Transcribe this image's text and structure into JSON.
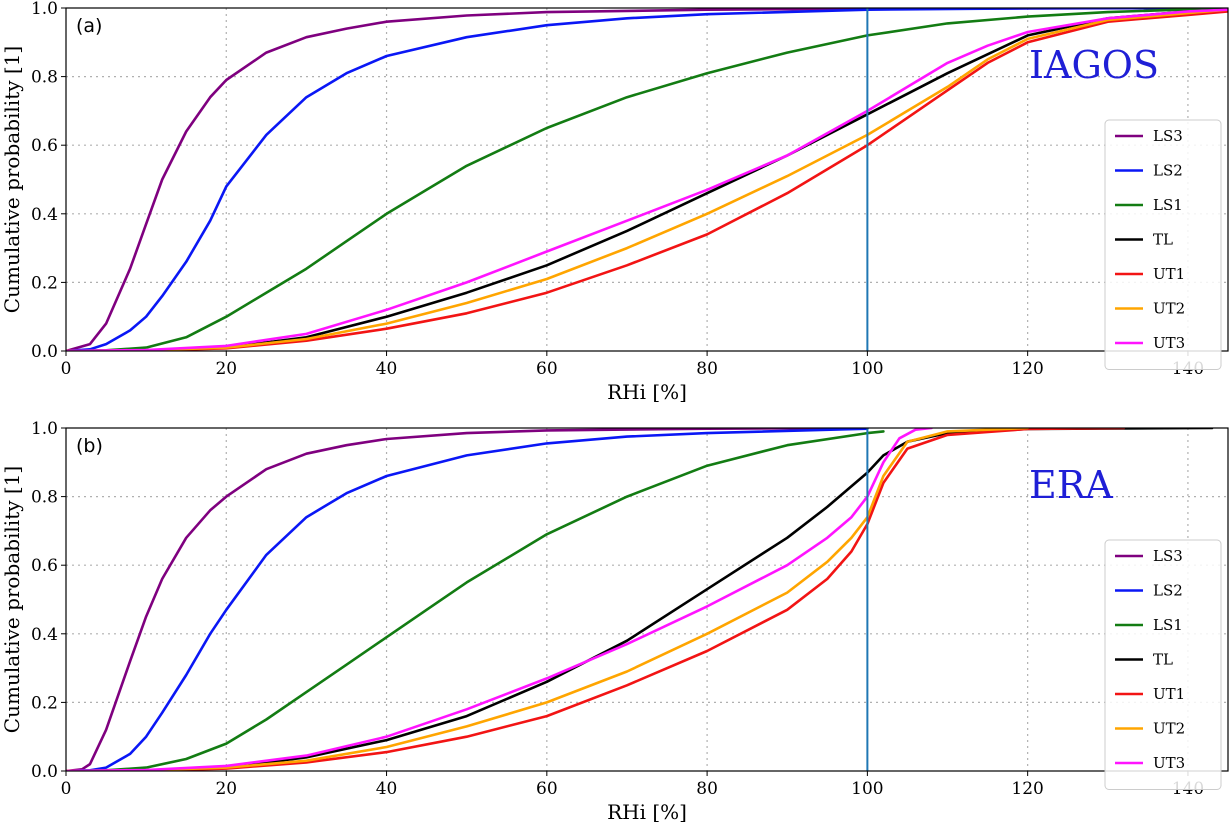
{
  "chart_data": [
    {
      "type": "line",
      "panel_label": "(a)",
      "dataset_label": "IAGOS",
      "title": "",
      "xlabel": "RHi [%]",
      "ylabel": "Cumulative probability [1]",
      "xlim": [
        0,
        145
      ],
      "ylim": [
        0,
        1.0
      ],
      "xticks": [
        "0",
        "20",
        "40",
        "60",
        "80",
        "100",
        "120",
        "140"
      ],
      "yticks": [
        "0.0",
        "0.2",
        "0.4",
        "0.6",
        "0.8",
        "1.0"
      ],
      "grid": true,
      "legend_position": "right",
      "vline_x": 100,
      "vline_color": "#1f77b4",
      "series": [
        {
          "name": "LS3",
          "color": "#7f007f",
          "x": [
            0,
            3,
            5,
            8,
            10,
            12,
            15,
            18,
            20,
            25,
            30,
            35,
            40,
            50,
            60,
            80,
            100,
            145
          ],
          "y": [
            0,
            0.02,
            0.08,
            0.24,
            0.37,
            0.5,
            0.64,
            0.74,
            0.79,
            0.87,
            0.915,
            0.94,
            0.96,
            0.978,
            0.988,
            0.995,
            0.998,
            1.0
          ]
        },
        {
          "name": "LS2",
          "color": "#0a17f5",
          "x": [
            0,
            3,
            5,
            8,
            10,
            12,
            15,
            18,
            20,
            25,
            30,
            35,
            40,
            50,
            60,
            70,
            80,
            100,
            120,
            145
          ],
          "y": [
            0,
            0.005,
            0.02,
            0.06,
            0.1,
            0.16,
            0.26,
            0.38,
            0.48,
            0.63,
            0.74,
            0.81,
            0.86,
            0.915,
            0.95,
            0.97,
            0.982,
            0.995,
            0.999,
            1.0
          ]
        },
        {
          "name": "LS1",
          "color": "#137c13",
          "x": [
            0,
            5,
            10,
            15,
            20,
            25,
            30,
            35,
            40,
            45,
            50,
            60,
            70,
            80,
            90,
            100,
            110,
            120,
            130,
            145
          ],
          "y": [
            0,
            0.002,
            0.01,
            0.04,
            0.1,
            0.17,
            0.24,
            0.32,
            0.4,
            0.47,
            0.54,
            0.65,
            0.74,
            0.81,
            0.87,
            0.92,
            0.955,
            0.975,
            0.988,
            1.0
          ]
        },
        {
          "name": "TL",
          "color": "#000000",
          "x": [
            0,
            10,
            20,
            30,
            40,
            50,
            60,
            70,
            80,
            90,
            100,
            105,
            110,
            120,
            130,
            140,
            145
          ],
          "y": [
            0,
            0.002,
            0.01,
            0.04,
            0.1,
            0.17,
            0.25,
            0.35,
            0.46,
            0.57,
            0.69,
            0.75,
            0.81,
            0.92,
            0.97,
            0.99,
            0.995
          ]
        },
        {
          "name": "UT1",
          "color": "#f21414",
          "x": [
            0,
            10,
            20,
            30,
            40,
            50,
            60,
            70,
            80,
            90,
            100,
            105,
            110,
            115,
            120,
            130,
            140,
            145
          ],
          "y": [
            0,
            0.001,
            0.008,
            0.03,
            0.065,
            0.11,
            0.17,
            0.25,
            0.34,
            0.46,
            0.6,
            0.68,
            0.76,
            0.84,
            0.9,
            0.96,
            0.98,
            0.99
          ]
        },
        {
          "name": "UT2",
          "color": "#ffa500",
          "x": [
            0,
            10,
            20,
            30,
            40,
            50,
            60,
            70,
            80,
            90,
            100,
            105,
            110,
            115,
            120,
            130,
            140,
            145
          ],
          "y": [
            0,
            0.002,
            0.01,
            0.035,
            0.08,
            0.14,
            0.21,
            0.3,
            0.4,
            0.51,
            0.63,
            0.7,
            0.77,
            0.85,
            0.91,
            0.965,
            0.985,
            0.995
          ]
        },
        {
          "name": "UT3",
          "color": "#ff14ff",
          "x": [
            0,
            10,
            20,
            30,
            40,
            50,
            60,
            70,
            80,
            90,
            100,
            105,
            110,
            115,
            120,
            130,
            140,
            145
          ],
          "y": [
            0,
            0.003,
            0.015,
            0.05,
            0.12,
            0.2,
            0.29,
            0.38,
            0.47,
            0.57,
            0.7,
            0.77,
            0.84,
            0.89,
            0.93,
            0.97,
            0.99,
            0.995
          ]
        }
      ]
    },
    {
      "type": "line",
      "panel_label": "(b)",
      "dataset_label": "ERA",
      "title": "",
      "xlabel": "RHi [%]",
      "ylabel": "Cumulative probability [1]",
      "xlim": [
        0,
        145
      ],
      "ylim": [
        0,
        1.0
      ],
      "xticks": [
        "0",
        "20",
        "40",
        "60",
        "80",
        "100",
        "120",
        "140"
      ],
      "yticks": [
        "0.0",
        "0.2",
        "0.4",
        "0.6",
        "0.8",
        "1.0"
      ],
      "grid": true,
      "legend_position": "right",
      "vline_x": 100,
      "vline_color": "#1f77b4",
      "series": [
        {
          "name": "LS3",
          "color": "#7f007f",
          "x": [
            0,
            2,
            3,
            5,
            8,
            10,
            12,
            15,
            18,
            20,
            25,
            30,
            35,
            40,
            50,
            60,
            80,
            100
          ],
          "y": [
            0,
            0.005,
            0.02,
            0.12,
            0.32,
            0.45,
            0.56,
            0.68,
            0.76,
            0.8,
            0.88,
            0.925,
            0.95,
            0.968,
            0.985,
            0.993,
            0.998,
            1.0
          ]
        },
        {
          "name": "LS2",
          "color": "#0a17f5",
          "x": [
            0,
            3,
            5,
            8,
            10,
            12,
            15,
            18,
            20,
            25,
            30,
            35,
            40,
            50,
            60,
            70,
            80,
            100
          ],
          "y": [
            0,
            0.002,
            0.01,
            0.05,
            0.1,
            0.17,
            0.28,
            0.4,
            0.47,
            0.63,
            0.74,
            0.81,
            0.86,
            0.92,
            0.955,
            0.975,
            0.985,
            0.998
          ]
        },
        {
          "name": "LS1",
          "color": "#137c13",
          "x": [
            0,
            5,
            10,
            15,
            20,
            25,
            30,
            35,
            40,
            45,
            50,
            60,
            70,
            80,
            90,
            100,
            102
          ],
          "y": [
            0,
            0.002,
            0.01,
            0.035,
            0.08,
            0.15,
            0.23,
            0.31,
            0.39,
            0.47,
            0.55,
            0.69,
            0.8,
            0.89,
            0.95,
            0.985,
            0.99
          ]
        },
        {
          "name": "TL",
          "color": "#000000",
          "x": [
            0,
            10,
            20,
            30,
            40,
            50,
            60,
            70,
            80,
            90,
            95,
            100,
            102,
            105,
            110,
            120,
            143
          ],
          "y": [
            0,
            0.002,
            0.01,
            0.04,
            0.09,
            0.16,
            0.26,
            0.38,
            0.53,
            0.68,
            0.77,
            0.87,
            0.92,
            0.96,
            0.985,
            0.997,
            1.0
          ]
        },
        {
          "name": "UT1",
          "color": "#f21414",
          "x": [
            0,
            10,
            20,
            30,
            40,
            50,
            60,
            70,
            80,
            90,
            95,
            98,
            100,
            102,
            105,
            110,
            120,
            132
          ],
          "y": [
            0,
            0.001,
            0.007,
            0.025,
            0.055,
            0.1,
            0.16,
            0.25,
            0.35,
            0.47,
            0.56,
            0.64,
            0.72,
            0.84,
            0.94,
            0.98,
            0.997,
            1.0
          ]
        },
        {
          "name": "UT2",
          "color": "#ffa500",
          "x": [
            0,
            10,
            20,
            30,
            40,
            50,
            60,
            70,
            80,
            90,
            95,
            98,
            100,
            102,
            105,
            110,
            120
          ],
          "y": [
            0,
            0.002,
            0.01,
            0.03,
            0.07,
            0.13,
            0.2,
            0.29,
            0.4,
            0.52,
            0.61,
            0.68,
            0.74,
            0.86,
            0.96,
            0.99,
            1.0
          ]
        },
        {
          "name": "UT3",
          "color": "#ff14ff",
          "x": [
            0,
            10,
            20,
            30,
            40,
            50,
            60,
            70,
            80,
            90,
            95,
            98,
            100,
            102,
            104,
            106,
            108
          ],
          "y": [
            0,
            0.003,
            0.015,
            0.045,
            0.1,
            0.18,
            0.27,
            0.37,
            0.48,
            0.6,
            0.68,
            0.74,
            0.8,
            0.9,
            0.97,
            0.995,
            1.0
          ]
        }
      ]
    }
  ]
}
